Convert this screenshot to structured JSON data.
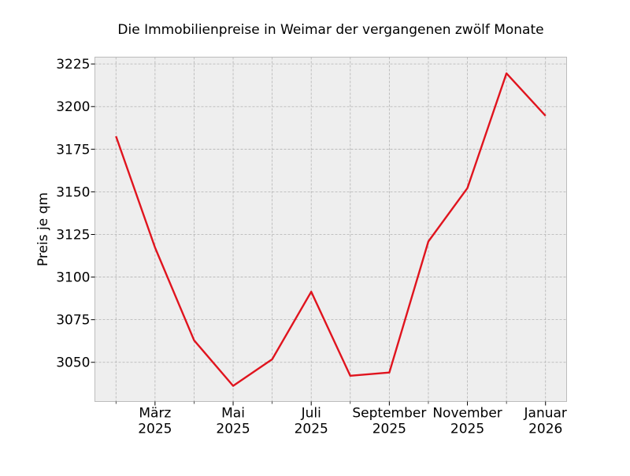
{
  "chart_data": {
    "type": "line",
    "title": "Die Immobilienpreise in Weimar der vergangenen zwölf Monate",
    "xlabel": "",
    "ylabel": "Preis je qm",
    "x": [
      "2025-02",
      "2025-03",
      "2025-04",
      "2025-05",
      "2025-06",
      "2025-07",
      "2025-08",
      "2025-09",
      "2025-10",
      "2025-11",
      "2025-12",
      "2026-01"
    ],
    "series": [
      {
        "name": "Preis je qm",
        "color": "#e0141e",
        "values": [
          3182.6,
          3117.3,
          3062.9,
          3036.2,
          3051.8,
          3091.4,
          3042.1,
          3044.0,
          3120.9,
          3152.2,
          3219.5,
          3194.6
        ]
      }
    ],
    "xticks": [
      {
        "index": 1,
        "label": [
          "März",
          "2025"
        ]
      },
      {
        "index": 3,
        "label": [
          "Mai",
          "2025"
        ]
      },
      {
        "index": 5,
        "label": [
          "Juli",
          "2025"
        ]
      },
      {
        "index": 7,
        "label": [
          "September",
          "2025"
        ]
      },
      {
        "index": 9,
        "label": [
          "November",
          "2025"
        ]
      },
      {
        "index": 11,
        "label": [
          "Januar",
          "2026"
        ]
      }
    ],
    "yticks": [
      3050,
      3075,
      3100,
      3125,
      3150,
      3175,
      3200,
      3225
    ],
    "xlim": [
      -0.54,
      11.54
    ],
    "ylim": [
      3027,
      3229
    ],
    "grid": true,
    "background": "#eeeeee"
  }
}
